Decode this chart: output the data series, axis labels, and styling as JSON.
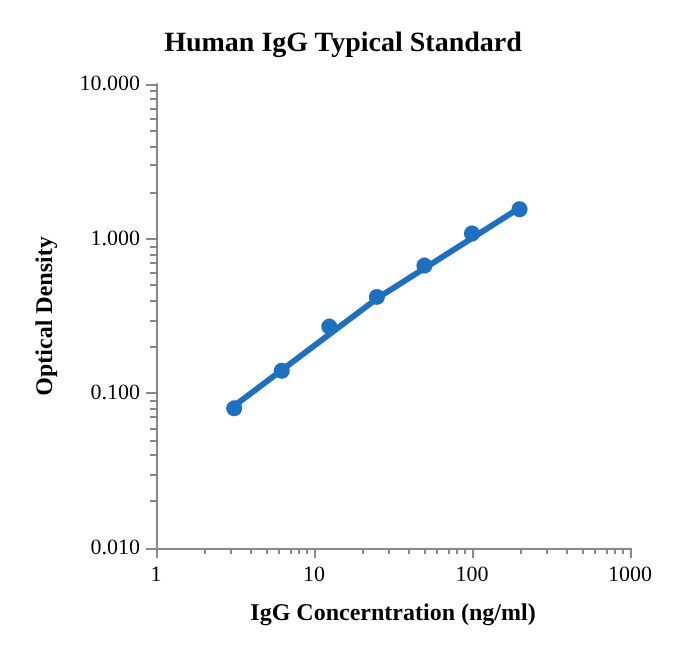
{
  "chart_data": {
    "type": "scatter",
    "title": "Human IgG Typical Standard",
    "xlabel": "IgG Concerntration (ng/ml)",
    "ylabel": "Optical Density",
    "log": "xy",
    "grid": false,
    "xlim": [
      1,
      1000
    ],
    "xticks": [
      1,
      10,
      100,
      1000
    ],
    "ylim": [
      0.01,
      10
    ],
    "yticks": [
      {
        "value": 0.01,
        "label": "0.010"
      },
      {
        "value": 0.1,
        "label": "0.100"
      },
      {
        "value": 1,
        "label": "1.000"
      },
      {
        "value": 10,
        "label": "10.000"
      }
    ],
    "x": [
      3.125,
      6.25,
      12.5,
      25,
      50,
      100,
      200
    ],
    "series": [
      {
        "color": "#1f6fbf",
        "marker": "circle",
        "values": [
          0.08,
          0.14,
          0.27,
          0.42,
          0.67,
          1.08,
          1.55
        ]
      },
      {
        "type": "line",
        "color": "#1f6fbf",
        "marker": "none",
        "line_style": "solid",
        "x": [
          3.125,
          25,
          200
        ],
        "values": [
          0.083,
          0.41,
          1.58
        ]
      }
    ]
  }
}
